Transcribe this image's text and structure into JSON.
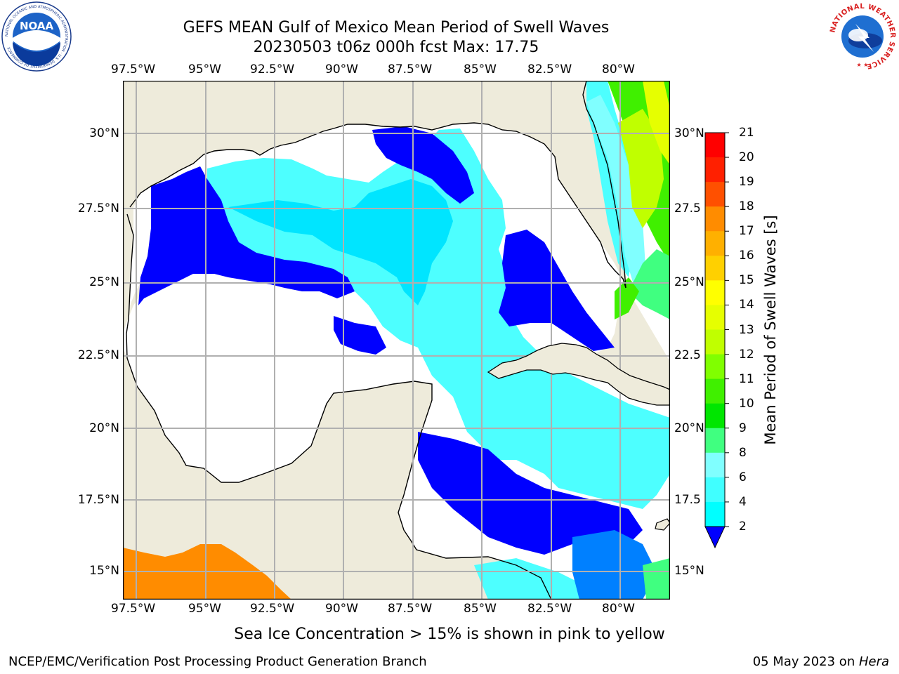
{
  "title": {
    "line1": "GEFS MEAN Gulf of Mexico Mean Period of Swell Waves",
    "line2": "20230503 t06z 000h fcst   Max: 17.75"
  },
  "map": {
    "lon_labels": [
      "97.5°W",
      "95°W",
      "92.5°W",
      "90°W",
      "87.5°W",
      "85°W",
      "82.5°W",
      "80°W"
    ],
    "lat_labels_left": [
      "30°N",
      "27.5°N",
      "25°N",
      "22.5°N",
      "20°N",
      "17.5°N",
      "15°N"
    ],
    "lat_labels_right": [
      "30°N",
      "27.5",
      "25°N",
      "22.5",
      "20°N",
      "17.5",
      "15°N"
    ],
    "colors": {
      "land": "#EEEBDB",
      "ocean_nodata": "#FFFFFF",
      "grid": "#B0B0B0"
    }
  },
  "colorbar": {
    "title": "Mean Period of Swell Waves [s]",
    "ticks": [
      "2",
      "4",
      "6",
      "8",
      "9",
      "10",
      "11",
      "12",
      "13",
      "14",
      "15",
      "16",
      "17",
      "18",
      "19",
      "20",
      "21"
    ],
    "colors": [
      "#0000FF",
      "#0080FF",
      "#00FFFF",
      "#40FFFF",
      "#80FFFF",
      "#40FF80",
      "#00E600",
      "#40F000",
      "#80FF00",
      "#C0FF00",
      "#E6FF00",
      "#FFFF00",
      "#FFD000",
      "#FFB000",
      "#FF8C00",
      "#FF5000",
      "#FF2000",
      "#FF0000"
    ]
  },
  "footnote": "Sea Ice Concentration > 15% is shown in pink to yellow",
  "credit_left": "NCEP/EMC/Verification Post Processing Product Generation Branch",
  "credit_right": {
    "date": "05 May 2023 on ",
    "host": "Hera"
  },
  "logos": {
    "noaa": {
      "text": "NOAA",
      "ring_text": "NATIONAL OCEANIC AND ATMOSPHERIC ADMINISTRATION · U.S. DEPARTMENT OF COMMERCE"
    },
    "nws": {
      "ring_text": "NATIONAL WEATHER SERVICE"
    }
  }
}
